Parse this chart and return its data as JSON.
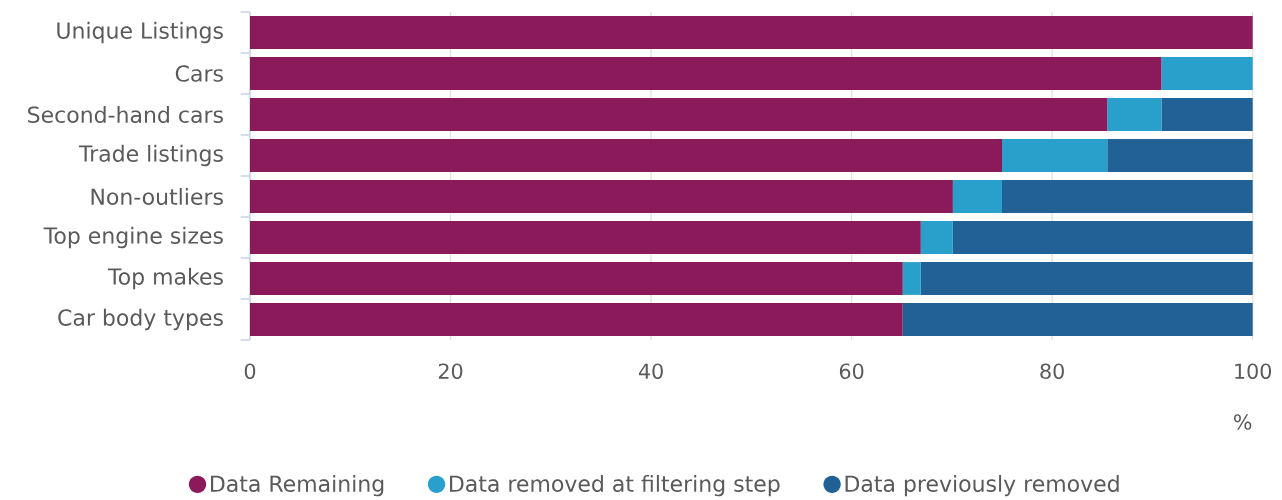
{
  "chart_data": {
    "type": "bar",
    "orientation": "horizontal",
    "stacked": true,
    "categories": [
      "Unique Listings",
      "Cars",
      "Second-hand cars",
      "Trade listings",
      "Non-outliers",
      "Top engine sizes",
      "Top makes",
      "Car body types"
    ],
    "series": [
      {
        "name": "Data Remaining",
        "color": "#8a1a5a",
        "values": [
          100,
          90.9,
          85.5,
          75.0,
          70.1,
          66.9,
          65.1,
          65.1
        ]
      },
      {
        "name": "Data removed at filtering step",
        "color": "#29a0cc",
        "values": [
          0,
          9.1,
          5.4,
          10.5,
          4.9,
          3.2,
          1.8,
          0
        ]
      },
      {
        "name": "Data previously removed",
        "color": "#216195",
        "values": [
          0,
          0,
          9.1,
          14.5,
          25.0,
          29.9,
          33.1,
          34.9
        ]
      }
    ],
    "xlim": [
      0,
      100
    ],
    "xticks": [
      0,
      20,
      40,
      60,
      80,
      100
    ],
    "xlabel": "%",
    "grid": "x",
    "legend": "bottom"
  }
}
